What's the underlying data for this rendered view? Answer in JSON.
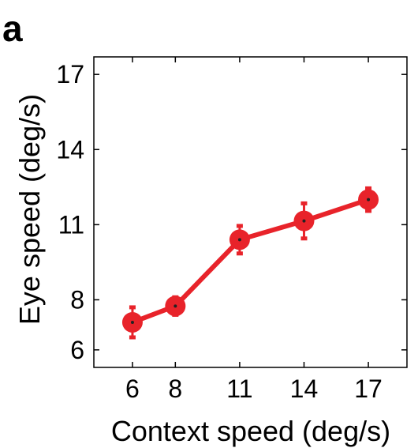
{
  "panel_label": "a",
  "chart_data": {
    "type": "line",
    "title": "",
    "xlabel": "Context speed (deg/s)",
    "ylabel": "Eye speed (deg/s)",
    "x_ticks": [
      6,
      8,
      11,
      14,
      17
    ],
    "y_ticks": [
      6,
      8,
      11,
      14,
      17
    ],
    "xlim": [
      4.2,
      18.8
    ],
    "ylim": [
      5.3,
      17.7
    ],
    "grid": false,
    "legend": "none",
    "color": "#e8232a",
    "series": [
      {
        "x": [
          6,
          8,
          11,
          14,
          17
        ],
        "y": [
          7.1,
          7.75,
          10.4,
          11.15,
          12.0
        ],
        "yerr": [
          0.6,
          0.35,
          0.55,
          0.7,
          0.45
        ]
      }
    ]
  }
}
